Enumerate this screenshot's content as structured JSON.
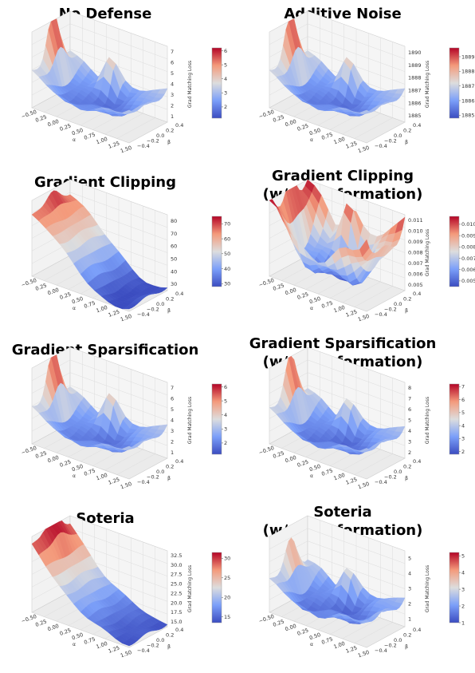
{
  "chart_data": [
    {
      "type": "surface",
      "title": "No Defense",
      "xlabel": "α",
      "ylabel": "β",
      "zlabel": "Grad Matching Loss",
      "x_ticks": [
        "−0.50",
        "0.25",
        "0.00",
        "0.25",
        "0.50",
        "0.75",
        "1.00",
        "1.25",
        "1.50"
      ],
      "y_ticks": [
        "0.4",
        "0.2",
        "0.0",
        "−0.2",
        "−0.4"
      ],
      "z_ticks": [
        "1",
        "2",
        "3",
        "4",
        "5",
        "6",
        "7"
      ],
      "zlim": [
        1,
        7
      ],
      "colorbar_ticks": [
        "2",
        "3",
        "4",
        "5",
        "6"
      ],
      "colorbar_range": [
        1.2,
        6.2
      ]
    },
    {
      "type": "surface",
      "title": "Additive Noise",
      "xlabel": "α",
      "ylabel": "β",
      "zlabel": "Grad Matching Loss",
      "x_ticks": [
        "−0.50",
        "0.25",
        "0.00",
        "0.25",
        "0.50",
        "0.75",
        "1.00",
        "1.25",
        "1.50"
      ],
      "y_ticks": [
        "0.4",
        "0.2",
        "0.0",
        "−0.2",
        "−0.4"
      ],
      "z_ticks": [
        "1885",
        "1886",
        "1887",
        "1888",
        "1889",
        "1890"
      ],
      "zlim": [
        1885,
        1890
      ],
      "colorbar_ticks": [
        "1885",
        "1886",
        "1887",
        "1888",
        "1889"
      ],
      "colorbar_range": [
        1884.8,
        1889.6
      ]
    },
    {
      "type": "surface",
      "title": "Gradient Clipping",
      "xlabel": "α",
      "ylabel": "β",
      "zlabel": "",
      "x_ticks": [
        "−0.50",
        "0.25",
        "0.00",
        "0.25",
        "0.50",
        "0.75",
        "1.00",
        "1.25",
        "1.50"
      ],
      "y_ticks": [
        "0.4",
        "0.2",
        "0.0",
        "−0.2",
        "−0.4"
      ],
      "z_ticks": [
        "30",
        "40",
        "50",
        "60",
        "70",
        "80"
      ],
      "zlim": [
        30,
        80
      ],
      "colorbar_ticks": [
        "30",
        "40",
        "50",
        "60",
        "70"
      ],
      "colorbar_range": [
        28,
        75
      ]
    },
    {
      "type": "surface",
      "title": "Gradient Clipping\n(w/ Transformation)",
      "xlabel": "α",
      "ylabel": "β",
      "zlabel": "Grad Matching Loss",
      "x_ticks": [
        "−0.50",
        "0.25",
        "0.00",
        "0.25",
        "0.50",
        "0.75",
        "1.00",
        "1.25",
        "1.50"
      ],
      "y_ticks": [
        "0.4",
        "0.2",
        "0.0",
        "−0.2",
        "−0.4"
      ],
      "z_ticks": [
        "0.005",
        "0.006",
        "0.007",
        "0.008",
        "0.009",
        "0.010",
        "0.011"
      ],
      "zlim": [
        0.005,
        0.011
      ],
      "colorbar_ticks": [
        "0.005",
        "0.006",
        "0.007",
        "0.008",
        "0.009",
        "0.010"
      ],
      "colorbar_range": [
        0.0045,
        0.0107
      ]
    },
    {
      "type": "surface",
      "title": "Gradient Sparsification",
      "xlabel": "α",
      "ylabel": "β",
      "zlabel": "Grad Matching Loss",
      "x_ticks": [
        "−0.50",
        "0.25",
        "0.00",
        "0.25",
        "0.50",
        "0.75",
        "1.00",
        "1.25",
        "1.50"
      ],
      "y_ticks": [
        "0.4",
        "0.2",
        "0.0",
        "−0.2",
        "−0.4"
      ],
      "z_ticks": [
        "1",
        "2",
        "3",
        "4",
        "5",
        "6",
        "7"
      ],
      "zlim": [
        1,
        7
      ],
      "colorbar_ticks": [
        "2",
        "3",
        "4",
        "5",
        "6"
      ],
      "colorbar_range": [
        1.2,
        6.2
      ]
    },
    {
      "type": "surface",
      "title": "Gradient Sparsification\n(w/ Transformation)",
      "xlabel": "α",
      "ylabel": "β",
      "zlabel": "Grad Matching Loss",
      "x_ticks": [
        "−0.50",
        "0.25",
        "0.00",
        "0.25",
        "0.50",
        "0.75",
        "1.00",
        "1.25",
        "1.50"
      ],
      "y_ticks": [
        "0.4",
        "0.2",
        "0.0",
        "−0.2",
        "−0.4"
      ],
      "z_ticks": [
        "2",
        "3",
        "4",
        "5",
        "6",
        "7",
        "8"
      ],
      "zlim": [
        2,
        8
      ],
      "colorbar_ticks": [
        "2",
        "3",
        "4",
        "5",
        "6",
        "7"
      ],
      "colorbar_range": [
        1.8,
        7.2
      ]
    },
    {
      "type": "surface",
      "title": "Soteria",
      "xlabel": "α",
      "ylabel": "β",
      "zlabel": "Grad Matching Loss",
      "x_ticks": [
        "−0.50",
        "0.25",
        "0.00",
        "0.25",
        "0.50",
        "0.75",
        "1.00",
        "1.25",
        "1.50"
      ],
      "y_ticks": [
        "0.4",
        "0.2",
        "0.0",
        "−0.2",
        "−0.4"
      ],
      "z_ticks": [
        "15.0",
        "17.5",
        "20.0",
        "22.5",
        "25.0",
        "27.5",
        "30.0",
        "32.5"
      ],
      "zlim": [
        15,
        32.5
      ],
      "colorbar_ticks": [
        "15",
        "20",
        "25",
        "30"
      ],
      "colorbar_range": [
        13.5,
        31.5
      ]
    },
    {
      "type": "surface",
      "title": "Soteria\n(w/ Transformation)",
      "xlabel": "α",
      "ylabel": "β",
      "zlabel": "Grad Matching Loss",
      "x_ticks": [
        "−0.50",
        "0.25",
        "0.00",
        "0.25",
        "0.50",
        "0.75",
        "1.00",
        "1.25",
        "1.50"
      ],
      "y_ticks": [
        "0.4",
        "0.2",
        "0.0",
        "−0.2",
        "−0.4"
      ],
      "z_ticks": [
        "1",
        "2",
        "3",
        "4",
        "5"
      ],
      "zlim": [
        1,
        5.5
      ],
      "colorbar_ticks": [
        "1",
        "2",
        "3",
        "4",
        "5"
      ],
      "colorbar_range": [
        1,
        5.2
      ]
    }
  ]
}
